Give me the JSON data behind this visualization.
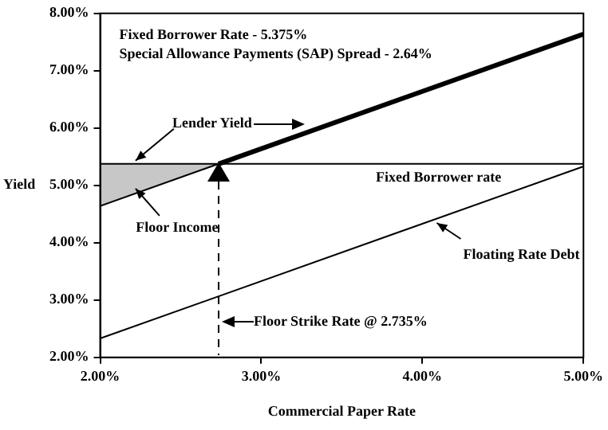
{
  "chart_data": {
    "type": "line",
    "xlabel": "Commercial Paper Rate",
    "ylabel": "Yield",
    "xlim": [
      2,
      5
    ],
    "xticks": [
      {
        "value": 2,
        "label": "2.00%"
      },
      {
        "value": 3,
        "label": "3.00%"
      },
      {
        "value": 4,
        "label": "4.00%"
      },
      {
        "value": 5,
        "label": "5.00%"
      }
    ],
    "ylim": [
      2,
      8
    ],
    "yticks": [
      {
        "value": 2,
        "label": "2.00%"
      },
      {
        "value": 3,
        "label": "3.00%"
      },
      {
        "value": 4,
        "label": "4.00%"
      },
      {
        "value": 5,
        "label": "5.00%"
      },
      {
        "value": 6,
        "label": "6.00%"
      },
      {
        "value": 7,
        "label": "7.00%"
      },
      {
        "value": 8,
        "label": "8.00%"
      }
    ],
    "grid": false,
    "legend": false,
    "series": [
      {
        "type": "line",
        "color": "#000000",
        "x": [
          2.735,
          5
        ],
        "values": [
          5.375,
          7.64
        ]
      },
      {
        "type": "line",
        "color": "#000000",
        "x": [
          2,
          5
        ],
        "values": [
          5.375,
          5.375
        ]
      },
      {
        "type": "line",
        "color": "#000000",
        "x": [
          2,
          5
        ],
        "values": [
          2.33,
          5.33
        ]
      },
      {
        "type": "line",
        "color": "#000000",
        "x": [
          2,
          2.735
        ],
        "values": [
          4.64,
          5.375
        ],
        "lower": [
          4.64,
          5.375
        ],
        "upper": [
          5.375,
          5.375
        ]
      }
    ],
    "annotations": [
      "Fixed Borrower Rate - 5.375%",
      "Special Allowance Payments (SAP) Spread - 2.64%",
      {
        "text": "Lender Yield",
        "x": 2.2,
        "y": 5.375
      },
      {
        "text": "Fixed Borrower rate",
        "x": 4.1,
        "y": 5.375
      },
      {
        "text": "Floor Income",
        "x": 2.2,
        "y": 5.0
      },
      {
        "text": "Floating Rate Debt",
        "x": 4.07,
        "y": 4.4
      },
      "Floor Strike Rate @ 2.735%"
    ]
  }
}
